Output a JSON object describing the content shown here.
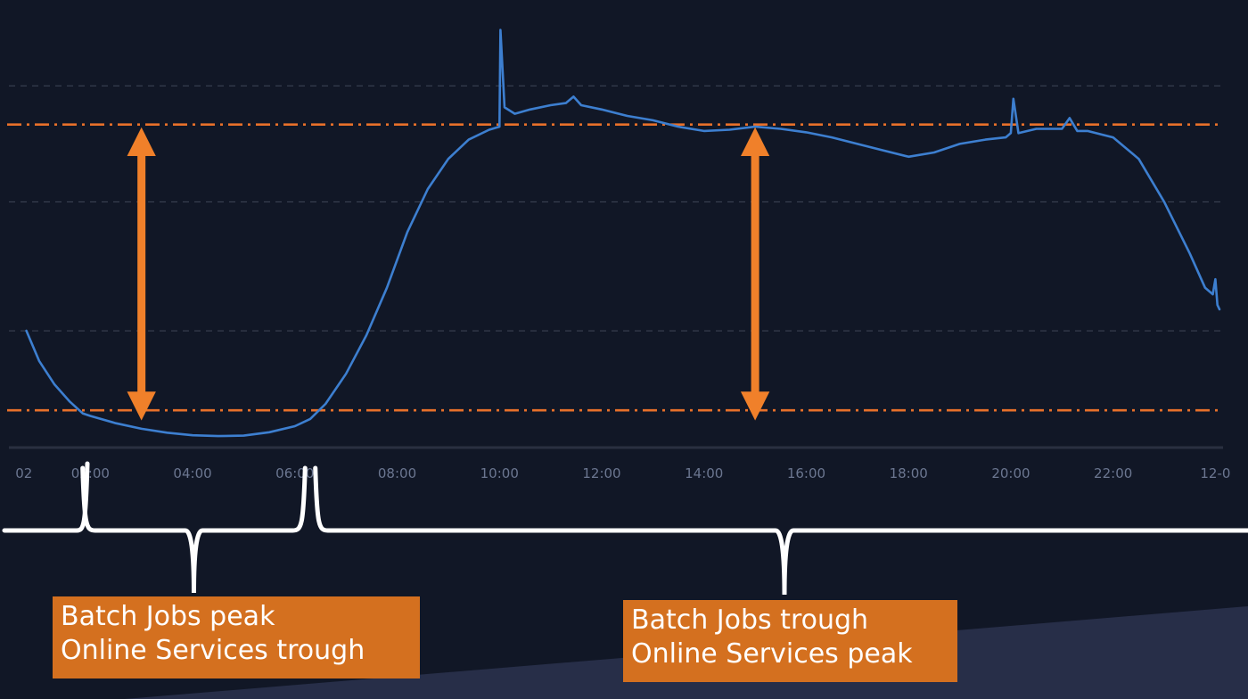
{
  "chart_data": {
    "type": "line",
    "x_unit": "hour of day",
    "xlim": [
      0.6,
      24.08
    ],
    "ylim": [
      0,
      100
    ],
    "x_ticks": [
      {
        "value": 0.7,
        "label": "02"
      },
      {
        "value": 2.0,
        "label": "02:00"
      },
      {
        "value": 4.0,
        "label": "04:00"
      },
      {
        "value": 6.0,
        "label": "06:00"
      },
      {
        "value": 8.0,
        "label": "08:00"
      },
      {
        "value": 10.0,
        "label": "10:00"
      },
      {
        "value": 12.0,
        "label": "12:00"
      },
      {
        "value": 14.0,
        "label": "14:00"
      },
      {
        "value": 16.0,
        "label": "16:00"
      },
      {
        "value": 18.0,
        "label": "18:00"
      },
      {
        "value": 20.0,
        "label": "20:00"
      },
      {
        "value": 22.0,
        "label": "22:00"
      },
      {
        "value": 24.0,
        "label": "12-0"
      }
    ],
    "grid": true,
    "gridlines_y": [
      85,
      58,
      28
    ],
    "series": [
      {
        "color": "#3d7fd0",
        "points": [
          [
            0.75,
            28
          ],
          [
            1.0,
            21
          ],
          [
            1.3,
            15.5
          ],
          [
            1.6,
            11.5
          ],
          [
            1.85,
            8.8
          ],
          [
            2.0,
            8.2
          ],
          [
            2.5,
            6.5
          ],
          [
            3.0,
            5.2
          ],
          [
            3.5,
            4.3
          ],
          [
            4.0,
            3.7
          ],
          [
            4.5,
            3.5
          ],
          [
            5.0,
            3.6
          ],
          [
            5.5,
            4.4
          ],
          [
            6.0,
            5.8
          ],
          [
            6.3,
            7.5
          ],
          [
            6.6,
            11
          ],
          [
            7.0,
            18
          ],
          [
            7.4,
            27
          ],
          [
            7.8,
            38
          ],
          [
            8.2,
            51
          ],
          [
            8.6,
            61
          ],
          [
            9.0,
            68
          ],
          [
            9.4,
            72.5
          ],
          [
            9.8,
            74.8
          ],
          [
            10.0,
            75.5
          ],
          [
            10.02,
            98
          ],
          [
            10.1,
            80
          ],
          [
            10.3,
            78.5
          ],
          [
            10.6,
            79.5
          ],
          [
            11.0,
            80.5
          ],
          [
            11.3,
            81
          ],
          [
            11.45,
            82.5
          ],
          [
            11.6,
            80.5
          ],
          [
            12.0,
            79.5
          ],
          [
            12.5,
            78
          ],
          [
            13.0,
            77
          ],
          [
            13.5,
            75.5
          ],
          [
            14.0,
            74.5
          ],
          [
            14.5,
            74.8
          ],
          [
            15.0,
            75.5
          ],
          [
            15.5,
            75
          ],
          [
            16.0,
            74.2
          ],
          [
            16.5,
            73
          ],
          [
            17.0,
            71.5
          ],
          [
            17.5,
            70
          ],
          [
            18.0,
            68.5
          ],
          [
            18.5,
            69.5
          ],
          [
            19.0,
            71.5
          ],
          [
            19.5,
            72.5
          ],
          [
            19.9,
            73
          ],
          [
            20.0,
            74
          ],
          [
            20.05,
            82
          ],
          [
            20.15,
            74
          ],
          [
            20.5,
            75
          ],
          [
            21.0,
            75
          ],
          [
            21.15,
            77.5
          ],
          [
            21.3,
            74.5
          ],
          [
            21.5,
            74.5
          ],
          [
            22.0,
            73
          ],
          [
            22.5,
            68
          ],
          [
            23.0,
            58
          ],
          [
            23.5,
            46
          ],
          [
            23.8,
            38
          ],
          [
            23.95,
            36.5
          ],
          [
            24.0,
            40
          ],
          [
            24.04,
            34
          ],
          [
            24.08,
            33
          ]
        ]
      }
    ],
    "reference_lines_y": [
      76,
      9.5
    ],
    "reference_line_color": "#e8702a",
    "range_arrows": [
      {
        "x": 3.0,
        "from": 10.5,
        "to": 72
      },
      {
        "x": 15.0,
        "from": 10.5,
        "to": 72
      }
    ],
    "arrow_color": "#f0802a",
    "brace_hours": [
      {
        "from": 1.85,
        "to": 6.2
      },
      {
        "from": 6.4,
        "to": 24.5
      }
    ]
  },
  "annotations": [
    {
      "line1": "Batch Jobs peak",
      "line2": "Online Services trough",
      "color": "#d4701f"
    },
    {
      "line1": "Batch Jobs trough",
      "line2": "Online Services peak",
      "color": "#d4701f"
    }
  ],
  "colors": {
    "background": "#111726",
    "background_corner": "#272e48",
    "grid": "#3a4152",
    "axis": "#2a3040",
    "brace": "#ffffff"
  }
}
